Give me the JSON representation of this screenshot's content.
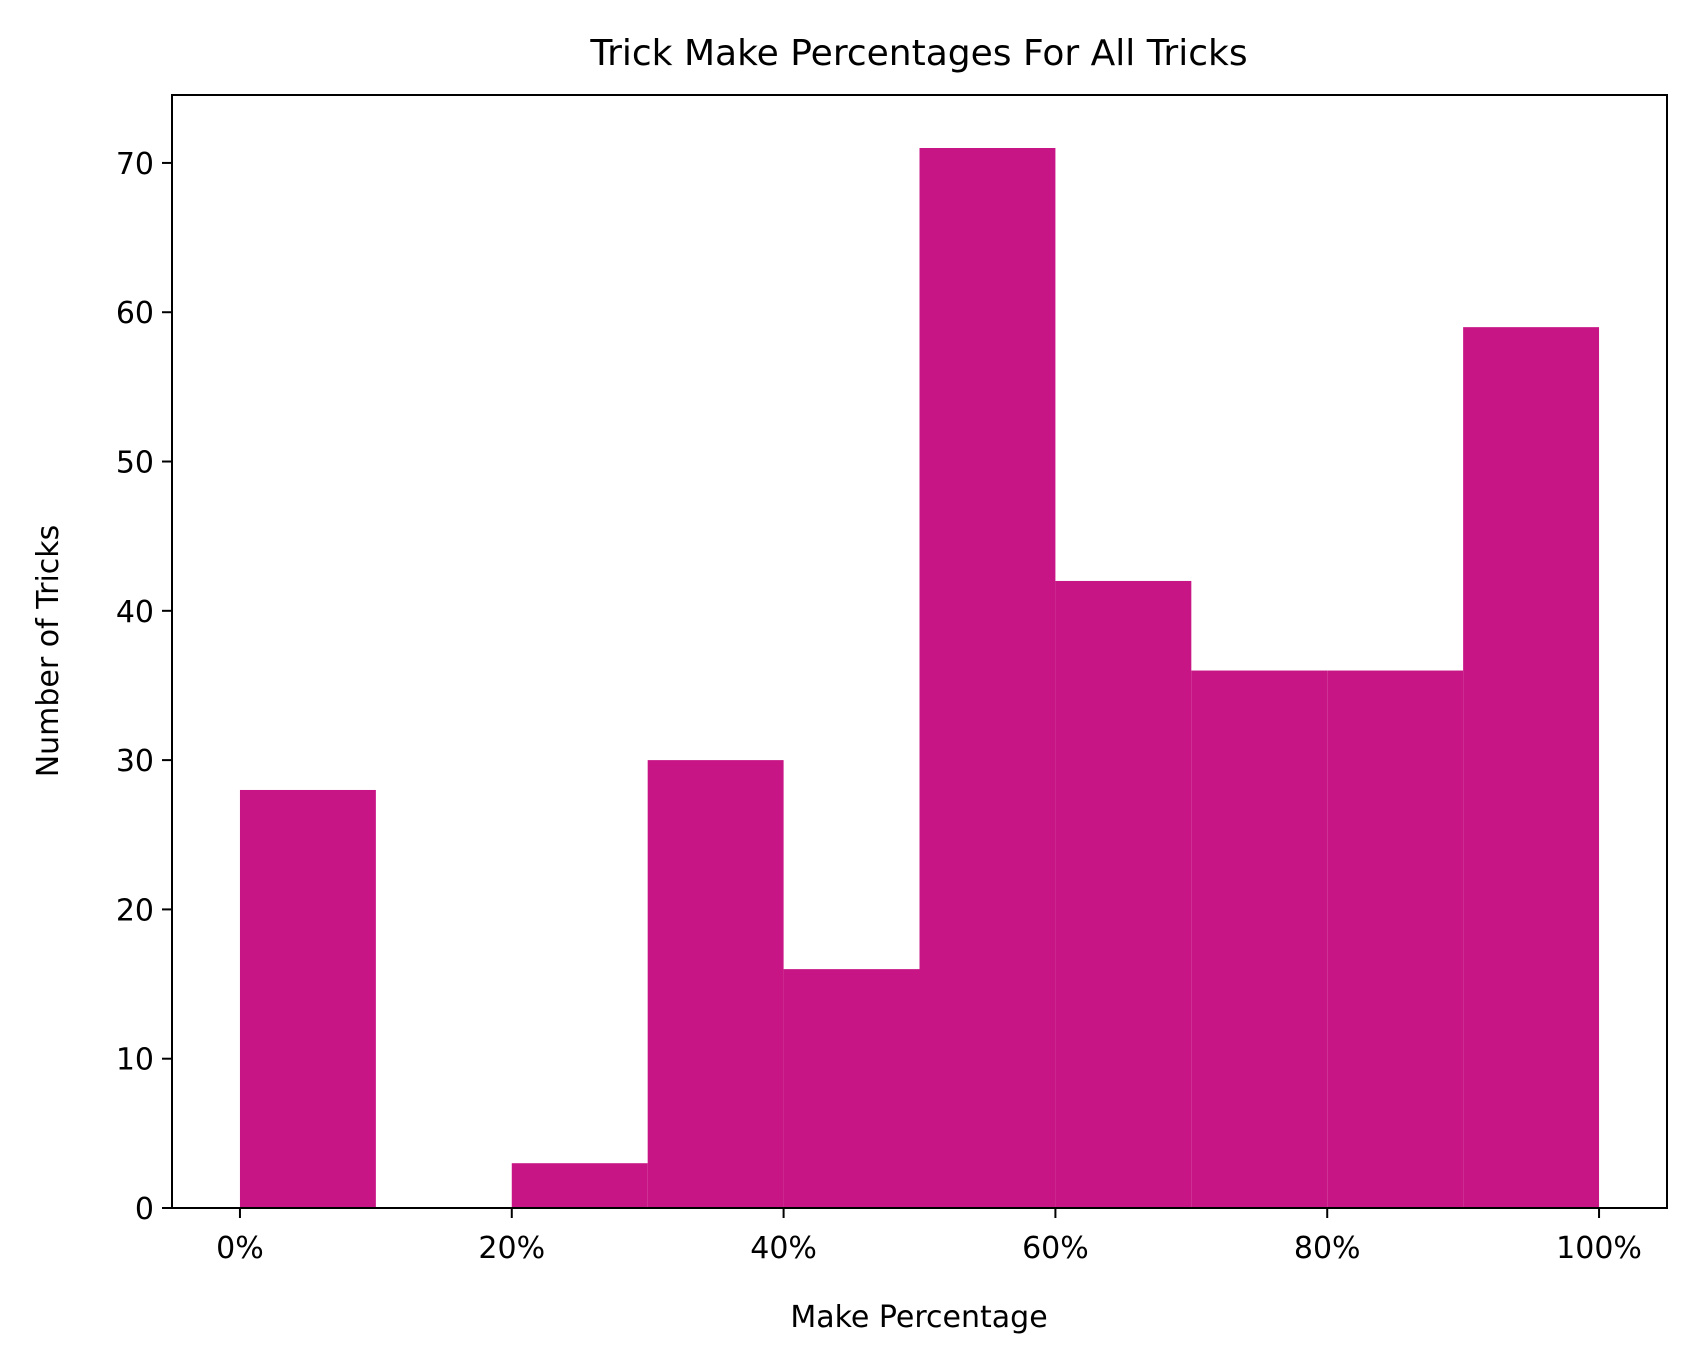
{
  "chart_data": {
    "type": "bar",
    "subtype": "histogram",
    "title": "Trick Make Percentages For All Tricks",
    "xlabel": "Make Percentage",
    "ylabel": "Number of Tricks",
    "bin_edges": [
      0,
      10,
      20,
      30,
      40,
      50,
      60,
      70,
      80,
      90,
      100
    ],
    "values": [
      28,
      0,
      3,
      30,
      16,
      71,
      42,
      36,
      36,
      59
    ],
    "xlim": [
      -5,
      105
    ],
    "ylim": [
      0,
      74.55
    ],
    "x_ticks": [
      0,
      20,
      40,
      60,
      80,
      100
    ],
    "x_tick_labels": [
      "0%",
      "20%",
      "40%",
      "60%",
      "80%",
      "100%"
    ],
    "y_ticks": [
      0,
      10,
      20,
      30,
      40,
      50,
      60,
      70
    ],
    "y_tick_labels": [
      "0",
      "10",
      "20",
      "30",
      "40",
      "50",
      "60",
      "70"
    ],
    "bar_color": "#C71585",
    "grid": false,
    "legend": "none"
  }
}
